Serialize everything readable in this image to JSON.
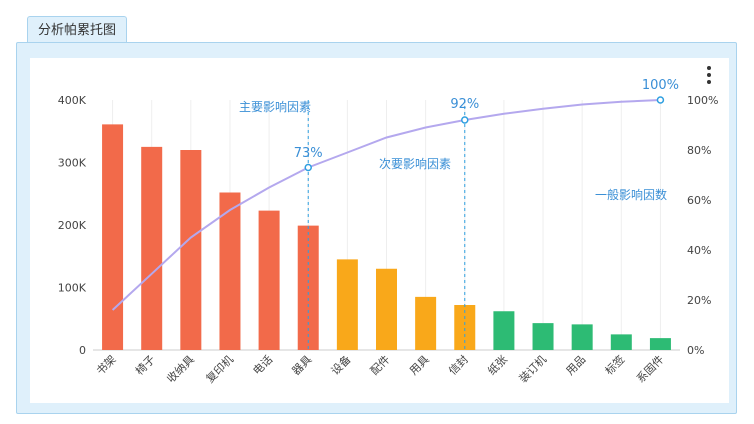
{
  "tab": {
    "label": "分析帕累托图"
  },
  "colors": {
    "primary": "#f26a4a",
    "secondary": "#f9a81a",
    "general": "#2dbb74",
    "cumulative_line": "#b4a8ee",
    "marker": "#2e9fe0",
    "annotation": "#3a8fd6"
  },
  "chart_data": {
    "type": "bar",
    "categories": [
      "书架",
      "椅子",
      "收纳具",
      "复印机",
      "电话",
      "器具",
      "设备",
      "配件",
      "用具",
      "信封",
      "纸张",
      "装订机",
      "用品",
      "标签",
      "系固件"
    ],
    "series": [
      {
        "values": [
          361000,
          325000,
          320000,
          252000,
          223000,
          199000,
          145000,
          130000,
          85000,
          72000,
          62000,
          43000,
          41000,
          25000,
          19000
        ],
        "groups": [
          "primary",
          "primary",
          "primary",
          "primary",
          "primary",
          "primary",
          "secondary",
          "secondary",
          "secondary",
          "secondary",
          "general",
          "general",
          "general",
          "general",
          "general"
        ]
      },
      {
        "axis": "right",
        "type": "line",
        "values": [
          16,
          30.5,
          45,
          56,
          65,
          73,
          79,
          85,
          89,
          92,
          94.5,
          96.5,
          98.2,
          99.3,
          100
        ]
      }
    ],
    "ylim": [
      0,
      400000
    ],
    "y_ticks": [
      "0",
      "100K",
      "200K",
      "300K",
      "400K"
    ],
    "y2lim": [
      0,
      100
    ],
    "y2_ticks": [
      "0%",
      "20%",
      "40%",
      "60%",
      "80%",
      "100%"
    ],
    "zones": [
      {
        "label": "主要影响因素",
        "end_index": 5,
        "percent_label": "73%"
      },
      {
        "label": "次要影响因素",
        "end_index": 9,
        "percent_label": "92%"
      },
      {
        "label": "一般影响因数",
        "end_index": 14,
        "percent_label": "100%"
      }
    ],
    "grid": true
  }
}
